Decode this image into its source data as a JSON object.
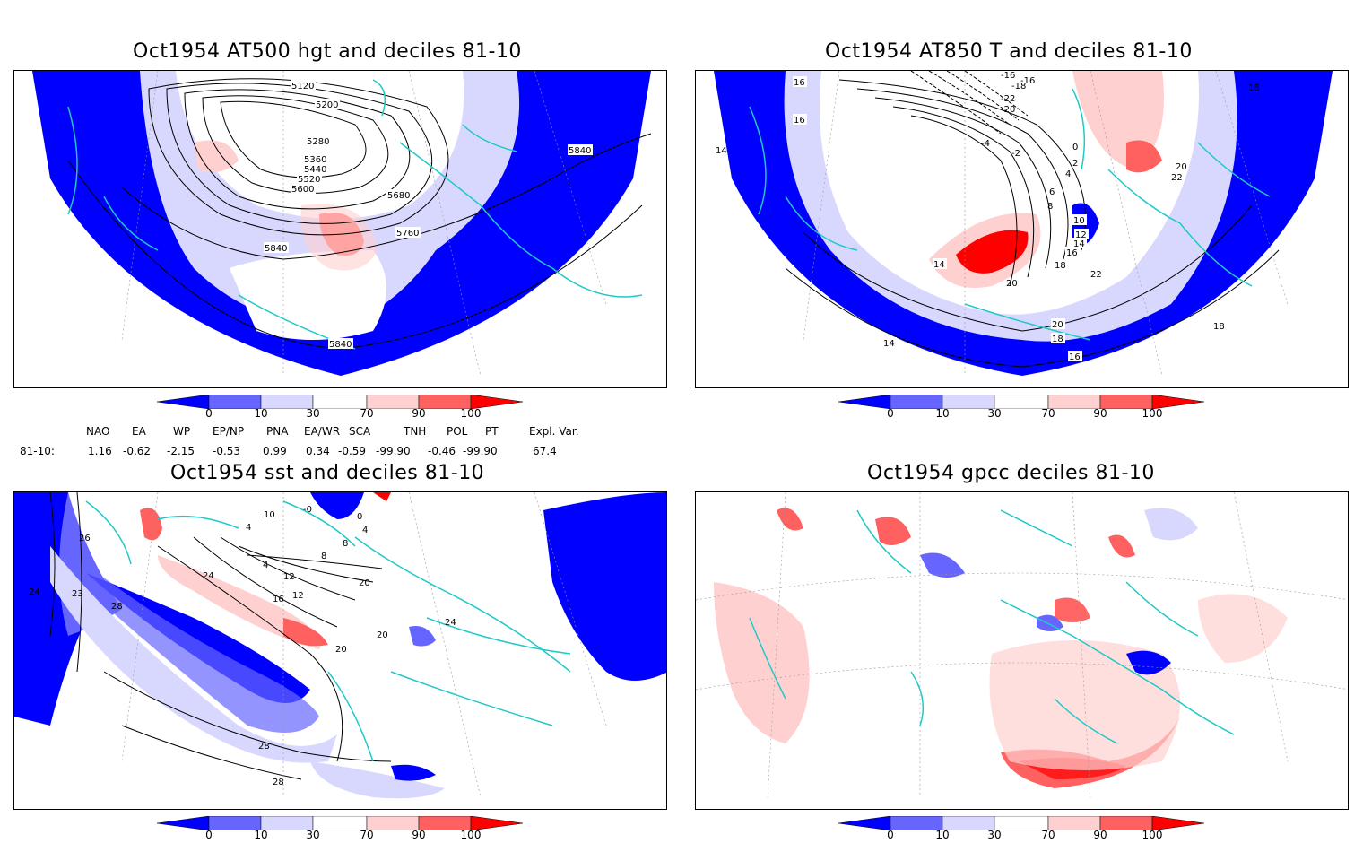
{
  "panels": {
    "top_left": {
      "title": "Oct1954 AT500 hgt and deciles 81-10",
      "contour_labels": [
        "5120",
        "5200",
        "5280",
        "5360",
        "5440",
        "5520",
        "5600",
        "5680",
        "5760",
        "5840",
        "5840",
        "5840"
      ]
    },
    "top_right": {
      "title": "Oct1954 AT850 T and deciles 81-10",
      "contour_labels": [
        "-16",
        "-16",
        "-18",
        "-22",
        "-20",
        "-4",
        "-2",
        "0",
        "2",
        "4",
        "6",
        "8",
        "10",
        "12",
        "14",
        "16",
        "18",
        "20",
        "22",
        "14",
        "16",
        "18",
        "20",
        "16",
        "18",
        "14",
        "14",
        "16",
        "20",
        "22",
        "18"
      ]
    },
    "bottom_left": {
      "title": "Oct1954 sst and deciles 81-10",
      "contour_labels": [
        "-0",
        "10",
        "0",
        "4",
        "4",
        "8",
        "4",
        "8",
        "12",
        "16",
        "20",
        "24",
        "20",
        "24",
        "12",
        "20",
        "28",
        "28",
        "24",
        "23",
        "28",
        "26"
      ]
    },
    "bottom_right": {
      "title": "Oct1954 gpcc deciles 81-10",
      "contour_labels": []
    }
  },
  "colorbar": {
    "labels": [
      "0",
      "10",
      "30",
      "70",
      "90",
      "100"
    ],
    "colors": [
      "#0000ff",
      "#6666ff",
      "#d8d8ff",
      "#ffffff",
      "#ffd0d0",
      "#ff6060",
      "#ff0000"
    ]
  },
  "indices": {
    "headers": [
      "NAO",
      "EA",
      "WP",
      "EP/NP",
      "PNA",
      "EA/WR",
      "SCA",
      "TNH",
      "POL",
      "PT",
      "Expl. Var."
    ],
    "row_label": "81-10:",
    "values": [
      "1.16",
      "-0.62",
      "-2.15",
      "-0.53",
      "0.99",
      "0.34",
      "-0.59",
      "-99.90",
      "-0.46",
      "-99.90",
      "67.4"
    ]
  },
  "colors": {
    "coast": "#20c8c8",
    "contour": "#000000",
    "grid": "#999999"
  }
}
